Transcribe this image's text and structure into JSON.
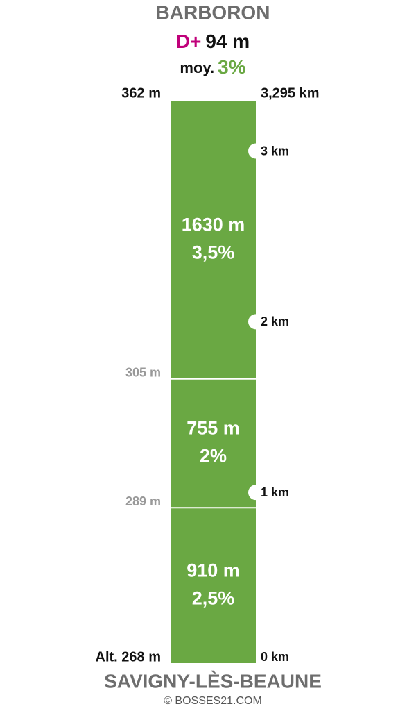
{
  "title": "BARBORON",
  "elevation_gain": {
    "prefix": "D+",
    "value": "94 m"
  },
  "average": {
    "prefix": "moy.",
    "value": "3%"
  },
  "segments": [
    {
      "length": 0.91,
      "label": "910 m",
      "grade": "2,5%"
    },
    {
      "length": 0.755,
      "label": "755 m",
      "grade": "2%"
    },
    {
      "length": 1.63,
      "label": "1630 m",
      "grade": "3,5%"
    }
  ],
  "altitudes": [
    "Alt. 268 m",
    "289 m",
    "305 m",
    "362 m"
  ],
  "km_markers": [
    {
      "value": 0,
      "label": "0 km"
    },
    {
      "value": 1,
      "label": "1 km"
    },
    {
      "value": 2,
      "label": "2 km"
    },
    {
      "value": 3,
      "label": "3 km"
    },
    {
      "value": 3.295,
      "label": "3,295 km"
    }
  ],
  "start": "SAVIGNY-LÈS-BEAUNE",
  "credit": "© BOSSES21.COM"
}
